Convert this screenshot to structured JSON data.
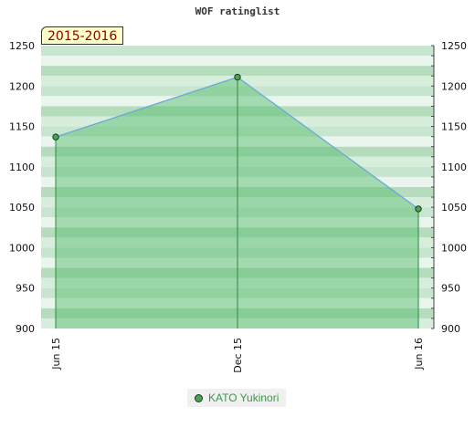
{
  "chart_data": {
    "type": "area",
    "title": "WOF ratinglist",
    "season_label": "2015-2016",
    "categories": [
      "Jun 15",
      "Dec 15",
      "Jun 16"
    ],
    "series": [
      {
        "name": "KATO Yukinori",
        "values": [
          1137,
          1211,
          1048
        ]
      }
    ],
    "ylim": [
      900,
      1250
    ],
    "yticks": [
      900,
      950,
      1000,
      1050,
      1100,
      1150,
      1200,
      1250
    ],
    "yaxis_left": true,
    "yaxis_right": true,
    "grid": "banded",
    "legend_position": "bottom-center",
    "colors": {
      "area_fill": "#5bbd74",
      "line": "#6aa9d8",
      "marker_fill": "#4aa35a",
      "marker_stroke": "#1a3a1a",
      "drop_line": "#2e8b3e",
      "band_colors": [
        "#c8e6cf",
        "#eaf6ed",
        "#b4dcbd",
        "#d7eedc"
      ]
    }
  }
}
